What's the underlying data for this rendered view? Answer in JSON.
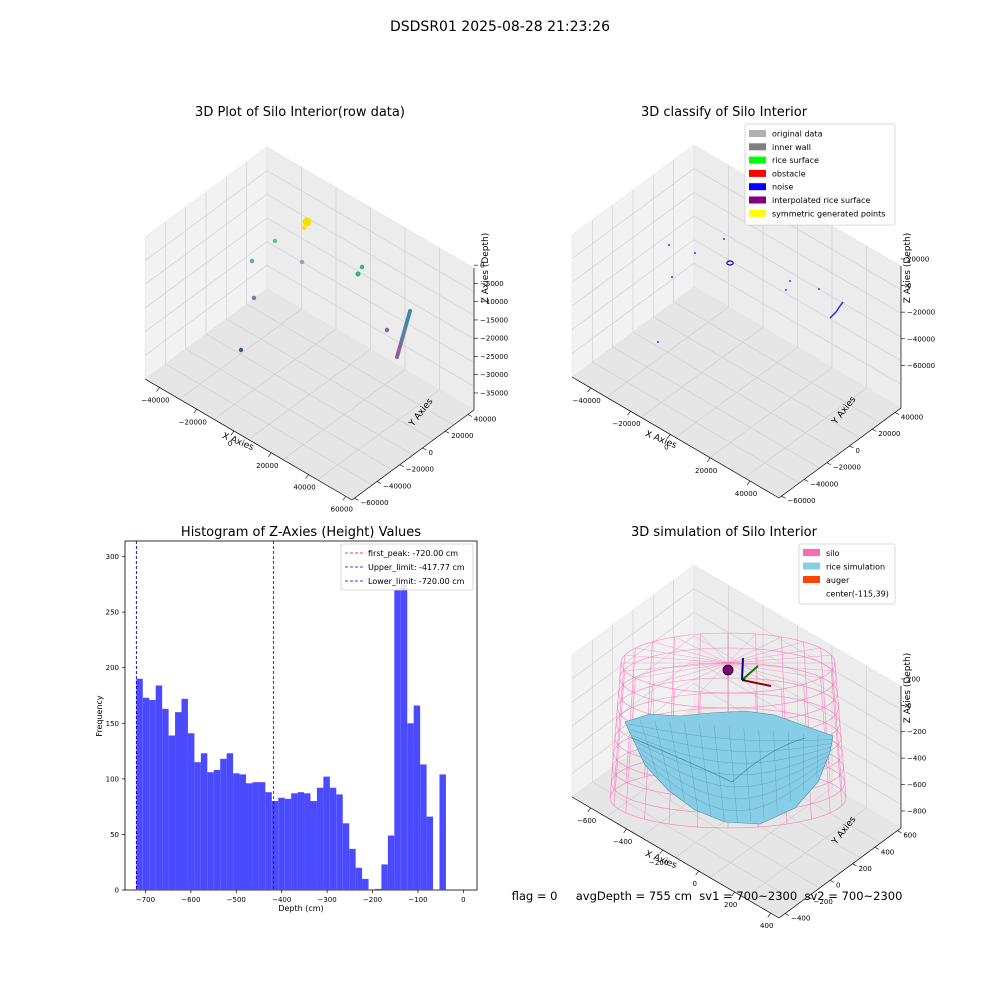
{
  "suptitle": "DSDSR01 2025-08-28 21:23:26",
  "footer": "flag = 0     avgDepth = 755 cm  sv1 = 700~2300  sv2 = 700~2300",
  "colors": {
    "pane_face": "#f2f2f2",
    "grid": "#cccccc",
    "hist_bar": "#4a4afe",
    "silo": "#ff69b4",
    "rice": "#87cde6",
    "auger": "#ff4500"
  },
  "chart_data": [
    {
      "type": "scatter",
      "title": "3D Plot of Silo Interior(row data)",
      "xlabel": "X Axies",
      "ylabel": "Y Axies",
      "zlabel": "Z Axies (Depth)",
      "xticks": [
        "−40000",
        "−20000",
        "0",
        "20000",
        "40000",
        "60000"
      ],
      "yticks": [
        "−60000",
        "−40000",
        "−20000",
        "0",
        "20000",
        "40000"
      ],
      "zticks": [
        "−35000",
        "−30000",
        "−25000",
        "−20000",
        "−15000",
        "−10000",
        "−5000",
        "0"
      ],
      "points": [
        {
          "x": -15000,
          "y": 30000,
          "z": -4000,
          "color": "#f5e100",
          "label": "cluster"
        },
        {
          "x": -12000,
          "y": 10000,
          "z": -11000,
          "color": "#5cc48e"
        },
        {
          "x": -25000,
          "y": 5000,
          "z": -15000,
          "color": "#6aa3a6"
        },
        {
          "x": 5000,
          "y": 20000,
          "z": -15000,
          "color": "#9b9bb5"
        },
        {
          "x": 25000,
          "y": 25000,
          "z": -18000,
          "color": "#39b37a"
        },
        {
          "x": -28000,
          "y": -10000,
          "z": -25000,
          "color": "#6a7fa3"
        },
        {
          "x": 35000,
          "y": 10000,
          "z": -28000,
          "color": "#8a5fa0"
        },
        {
          "x": -35000,
          "y": -20000,
          "z": -33000,
          "color": "#3d5a8a"
        }
      ]
    },
    {
      "type": "scatter",
      "title": "3D classify of Silo Interior",
      "xlabel": "X Axies",
      "ylabel": "Y Axies",
      "zlabel": "Z Axies (Depth)",
      "xticks": [
        "−40000",
        "−20000",
        "0",
        "20000",
        "40000"
      ],
      "yticks": [
        "−60000",
        "−40000",
        "−20000",
        "0",
        "20000",
        "40000"
      ],
      "zticks": [
        "−60000",
        "−40000",
        "−20000",
        "0",
        "20000"
      ],
      "legend": {
        "position": "top-right",
        "entries": [
          {
            "label": "original data",
            "color": "#b0b0b0"
          },
          {
            "label": "inner wall",
            "color": "#808080"
          },
          {
            "label": "rice surface",
            "color": "#00ff00"
          },
          {
            "label": "obstacle",
            "color": "#ff0000"
          },
          {
            "label": "noise",
            "color": "#0000ff"
          },
          {
            "label": "interpolated rice surface",
            "color": "#800080"
          },
          {
            "label": "symmetric generated points",
            "color": "#ffff00"
          }
        ]
      }
    },
    {
      "type": "bar",
      "title": "Histogram of Z-Axies (Height) Values",
      "xlabel": "Depth (cm)",
      "ylabel": "Frequency",
      "xlim": [
        -745,
        30
      ],
      "ylim": [
        0,
        314
      ],
      "xticks": [
        -700,
        -600,
        -500,
        -400,
        -300,
        -200,
        -100,
        0
      ],
      "yticks": [
        0,
        50,
        100,
        150,
        200,
        250,
        300
      ],
      "bin_start": -720,
      "bin_width": 14.2,
      "values": [
        190,
        173,
        171,
        184,
        163,
        139,
        160,
        172,
        141,
        115,
        123,
        106,
        108,
        118,
        123,
        105,
        104,
        96,
        97,
        97,
        88,
        80,
        83,
        82,
        87,
        88,
        87,
        80,
        92,
        102,
        92,
        86,
        60,
        37,
        20,
        10,
        0,
        1,
        23,
        49,
        270,
        275,
        150,
        166,
        113,
        66,
        0,
        104
      ],
      "lines": [
        {
          "label": "first_peak: -720.00 cm",
          "x": -720,
          "color": "#ff0000"
        },
        {
          "label": "Upper_limit: -417.77 cm",
          "x": -417.77,
          "color": "#0000cc"
        },
        {
          "label": "Lower_limit: -720.00 cm",
          "x": -720,
          "color": "#0000cc"
        }
      ],
      "legend": "top-right"
    },
    {
      "type": "surface",
      "title": "3D simulation of Silo Interior",
      "xlabel": "X Axies",
      "ylabel": "Y Axies",
      "zlabel": "Z Axies (Depth)",
      "xticks": [
        "−600",
        "−400",
        "−200",
        "0",
        "200",
        "400"
      ],
      "yticks": [
        "−400",
        "−200",
        "0",
        "200",
        "400",
        "600"
      ],
      "zticks": [
        "−800",
        "−600",
        "−400",
        "−200",
        "0",
        "200"
      ],
      "legend": {
        "position": "top-right",
        "entries": [
          {
            "label": "silo",
            "color": "#ff69b4"
          },
          {
            "label": "rice simulation",
            "color": "#87cde6"
          },
          {
            "label": "auger",
            "color": "#ff4500"
          },
          {
            "label": "center(-115,39)",
            "color": "none"
          }
        ]
      }
    }
  ]
}
